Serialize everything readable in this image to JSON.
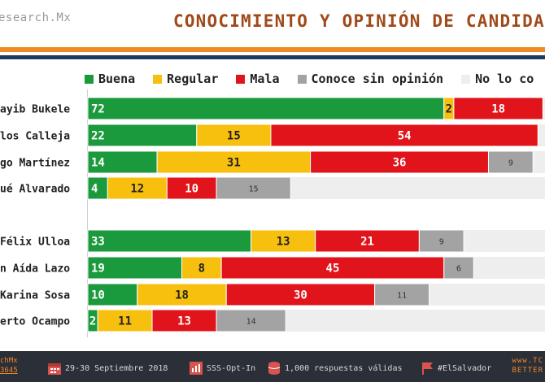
{
  "header": {
    "brand": "esearch.Mx",
    "title": "CONOCIMIENTO Y OPINIÓN DE CANDIDATO"
  },
  "legend": [
    {
      "label": "Buena",
      "color": "#1a9a3c"
    },
    {
      "label": "Regular",
      "color": "#f7bf0e"
    },
    {
      "label": "Mala",
      "color": "#e0141a"
    },
    {
      "label": "Conoce sin opinión",
      "color": "#a3a3a3"
    },
    {
      "label": "No lo co",
      "color": "#eeeeee"
    }
  ],
  "chart_data": {
    "type": "bar",
    "orientation": "horizontal",
    "stacked": true,
    "categories": [
      "ayib Bukele",
      "los Calleja",
      "go Martínez",
      "ué Alvarado",
      "Félix Ulloa",
      "n Aída Lazo",
      "Karina Sosa",
      "erto Ocampo"
    ],
    "groups": [
      [
        0,
        1,
        2,
        3
      ],
      [
        4,
        5,
        6,
        7
      ]
    ],
    "series": [
      {
        "name": "Buena",
        "color": "#1a9a3c",
        "values": [
          72,
          22,
          14,
          4,
          33,
          19,
          10,
          2
        ]
      },
      {
        "name": "Regular",
        "color": "#f7bf0e",
        "values": [
          2,
          15,
          31,
          12,
          13,
          8,
          18,
          11
        ]
      },
      {
        "name": "Mala",
        "color": "#e0141a",
        "values": [
          18,
          54,
          36,
          10,
          21,
          45,
          30,
          13
        ]
      },
      {
        "name": "Conoce sin opinión",
        "color": "#a3a3a3",
        "values": [
          null,
          null,
          9,
          15,
          9,
          6,
          11,
          14
        ]
      },
      {
        "name": "No lo co",
        "color": "#eeeeee",
        "values": [
          null,
          null,
          null,
          null,
          null,
          null,
          null,
          null
        ]
      }
    ],
    "xlim": [
      0,
      100
    ]
  },
  "footer": {
    "left_top": "chMx",
    "left_bottom": "3645",
    "date": "29-30 Septiembre 2018",
    "method": "SSS-Opt-In",
    "sample": "1,000 respuestas válidas",
    "hashtag": "#ElSalvador",
    "right_top": "www.TC",
    "right_bottom": "BETTER"
  }
}
